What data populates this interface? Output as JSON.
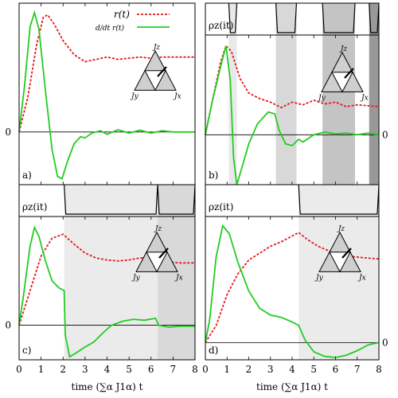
{
  "chart_data": [
    {
      "panel_label": "a)",
      "type": "line",
      "xlim": [
        0,
        8
      ],
      "ylim": [
        -0.45,
        1.1
      ],
      "zero_label": "0",
      "series": [
        {
          "name": "r(t)",
          "style": "dashed",
          "color": "#e41a1c",
          "points": [
            [
              0,
              0
            ],
            [
              0.4,
              0.3
            ],
            [
              0.8,
              0.75
            ],
            [
              1.1,
              0.98
            ],
            [
              1.3,
              1.0
            ],
            [
              1.6,
              0.92
            ],
            [
              2.0,
              0.78
            ],
            [
              2.5,
              0.66
            ],
            [
              3.0,
              0.6
            ],
            [
              3.5,
              0.62
            ],
            [
              4.0,
              0.64
            ],
            [
              4.5,
              0.62
            ],
            [
              5.0,
              0.63
            ],
            [
              5.5,
              0.64
            ],
            [
              6.0,
              0.63
            ],
            [
              6.5,
              0.64
            ],
            [
              7.0,
              0.64
            ],
            [
              7.5,
              0.64
            ],
            [
              8.0,
              0.64
            ]
          ]
        },
        {
          "name": "d/dt r(t)",
          "style": "solid",
          "color": "#22cc22",
          "points": [
            [
              0,
              0
            ],
            [
              0.25,
              0.4
            ],
            [
              0.5,
              0.9
            ],
            [
              0.7,
              1.02
            ],
            [
              0.9,
              0.88
            ],
            [
              1.2,
              0.35
            ],
            [
              1.5,
              -0.15
            ],
            [
              1.75,
              -0.38
            ],
            [
              1.95,
              -0.4
            ],
            [
              2.2,
              -0.25
            ],
            [
              2.5,
              -0.1
            ],
            [
              2.8,
              -0.04
            ],
            [
              3.0,
              -0.05
            ],
            [
              3.3,
              -0.01
            ],
            [
              3.7,
              0.01
            ],
            [
              4.0,
              -0.02
            ],
            [
              4.5,
              0.02
            ],
            [
              5.0,
              -0.01
            ],
            [
              5.5,
              0.015
            ],
            [
              6.0,
              -0.01
            ],
            [
              6.5,
              0.01
            ],
            [
              7.0,
              0.0
            ],
            [
              8.0,
              0.0
            ]
          ]
        }
      ],
      "shaded_regions": []
    },
    {
      "panel_label": "b)",
      "type": "line",
      "xlim": [
        0,
        8
      ],
      "ylim": [
        -0.55,
        1.1
      ],
      "zero_label": "0",
      "top_strip_label": "ρz(it)",
      "series": [
        {
          "name": "r(t)",
          "style": "dashed",
          "color": "#e41a1c",
          "points": [
            [
              0,
              0
            ],
            [
              0.3,
              0.35
            ],
            [
              0.7,
              0.8
            ],
            [
              0.95,
              0.98
            ],
            [
              1.2,
              0.92
            ],
            [
              1.6,
              0.62
            ],
            [
              2.0,
              0.46
            ],
            [
              2.5,
              0.4
            ],
            [
              3.0,
              0.36
            ],
            [
              3.5,
              0.3
            ],
            [
              4.0,
              0.36
            ],
            [
              4.5,
              0.33
            ],
            [
              5.0,
              0.38
            ],
            [
              5.5,
              0.34
            ],
            [
              6.0,
              0.36
            ],
            [
              6.5,
              0.31
            ],
            [
              7.0,
              0.33
            ],
            [
              7.5,
              0.32
            ],
            [
              8.0,
              0.31
            ]
          ]
        },
        {
          "name": "d/dt r(t)",
          "style": "solid",
          "color": "#22cc22",
          "points": [
            [
              0,
              0
            ],
            [
              0.3,
              0.35
            ],
            [
              0.7,
              0.75
            ],
            [
              0.95,
              0.98
            ],
            [
              1.15,
              0.6
            ],
            [
              1.3,
              -0.25
            ],
            [
              1.45,
              -0.55
            ],
            [
              1.7,
              -0.35
            ],
            [
              2.0,
              -0.1
            ],
            [
              2.4,
              0.12
            ],
            [
              2.9,
              0.25
            ],
            [
              3.2,
              0.23
            ],
            [
              3.4,
              0.05
            ],
            [
              3.7,
              -0.1
            ],
            [
              4.0,
              -0.12
            ],
            [
              4.3,
              -0.05
            ],
            [
              4.5,
              -0.08
            ],
            [
              5.0,
              0.0
            ],
            [
              5.5,
              0.03
            ],
            [
              6.0,
              0.01
            ],
            [
              6.5,
              0.02
            ],
            [
              7.0,
              0.0
            ],
            [
              7.5,
              0.02
            ],
            [
              8.0,
              0.0
            ]
          ]
        }
      ],
      "shaded_regions": [
        {
          "x0": 1.08,
          "x1": 1.45,
          "shade": "#e9e9e9"
        },
        {
          "x0": 3.25,
          "x1": 4.2,
          "shade": "#d8d8d8"
        },
        {
          "x0": 5.4,
          "x1": 6.9,
          "shade": "#c4c4c4"
        },
        {
          "x0": 7.55,
          "x1": 8.0,
          "shade": "#999999"
        }
      ]
    },
    {
      "panel_label": "c)",
      "type": "line",
      "xlim": [
        0,
        8
      ],
      "ylim": [
        -0.35,
        1.1
      ],
      "zero_label": "0",
      "top_strip_label": "ρz(it)",
      "series": [
        {
          "name": "r(t)",
          "style": "dashed",
          "color": "#e41a1c",
          "points": [
            [
              0,
              0
            ],
            [
              0.5,
              0.35
            ],
            [
              1.0,
              0.7
            ],
            [
              1.5,
              0.88
            ],
            [
              2.0,
              0.92
            ],
            [
              2.5,
              0.82
            ],
            [
              3.0,
              0.73
            ],
            [
              3.5,
              0.68
            ],
            [
              4.0,
              0.66
            ],
            [
              4.5,
              0.65
            ],
            [
              5.0,
              0.66
            ],
            [
              5.5,
              0.68
            ],
            [
              6.0,
              0.69
            ],
            [
              6.3,
              0.66
            ],
            [
              6.8,
              0.64
            ],
            [
              7.3,
              0.63
            ],
            [
              8.0,
              0.63
            ]
          ]
        },
        {
          "name": "d/dt r(t)",
          "style": "solid",
          "color": "#22cc22",
          "points": [
            [
              0,
              0
            ],
            [
              0.2,
              0.3
            ],
            [
              0.5,
              0.8
            ],
            [
              0.7,
              0.99
            ],
            [
              0.9,
              0.9
            ],
            [
              1.2,
              0.65
            ],
            [
              1.5,
              0.45
            ],
            [
              1.8,
              0.38
            ],
            [
              2.05,
              0.35
            ],
            [
              2.1,
              -0.1
            ],
            [
              2.3,
              -0.32
            ],
            [
              2.6,
              -0.28
            ],
            [
              3.0,
              -0.22
            ],
            [
              3.4,
              -0.17
            ],
            [
              3.8,
              -0.08
            ],
            [
              4.2,
              0.0
            ],
            [
              4.7,
              0.04
            ],
            [
              5.2,
              0.06
            ],
            [
              5.7,
              0.05
            ],
            [
              6.2,
              0.07
            ],
            [
              6.35,
              0.0
            ],
            [
              6.8,
              -0.02
            ],
            [
              7.3,
              -0.01
            ],
            [
              8.0,
              -0.01
            ]
          ]
        }
      ],
      "shaded_regions": [
        {
          "x0": 2.05,
          "x1": 6.3,
          "shade": "#ebebeb"
        },
        {
          "x0": 6.3,
          "x1": 8.0,
          "shade": "#d9d9d9"
        }
      ]
    },
    {
      "panel_label": "d)",
      "type": "line",
      "xlim": [
        0,
        8
      ],
      "ylim": [
        -0.15,
        1.1
      ],
      "zero_label": "0",
      "top_strip_label": "ρz(it)",
      "series": [
        {
          "name": "r(t)",
          "style": "dashed",
          "color": "#e41a1c",
          "points": [
            [
              0,
              0
            ],
            [
              0.5,
              0.15
            ],
            [
              1.0,
              0.42
            ],
            [
              1.5,
              0.6
            ],
            [
              2.0,
              0.72
            ],
            [
              2.5,
              0.78
            ],
            [
              3.0,
              0.84
            ],
            [
              3.5,
              0.88
            ],
            [
              4.0,
              0.93
            ],
            [
              4.3,
              0.96
            ],
            [
              4.7,
              0.9
            ],
            [
              5.2,
              0.84
            ],
            [
              5.7,
              0.8
            ],
            [
              6.2,
              0.78
            ],
            [
              6.8,
              0.75
            ],
            [
              7.3,
              0.74
            ],
            [
              8.0,
              0.73
            ]
          ]
        },
        {
          "name": "d/dt r(t)",
          "style": "solid",
          "color": "#22cc22",
          "points": [
            [
              0,
              0
            ],
            [
              0.2,
              0.2
            ],
            [
              0.5,
              0.75
            ],
            [
              0.8,
              1.02
            ],
            [
              1.1,
              0.95
            ],
            [
              1.5,
              0.7
            ],
            [
              2.0,
              0.45
            ],
            [
              2.5,
              0.3
            ],
            [
              3.0,
              0.24
            ],
            [
              3.5,
              0.22
            ],
            [
              4.0,
              0.18
            ],
            [
              4.3,
              0.15
            ],
            [
              4.6,
              0.02
            ],
            [
              5.0,
              -0.08
            ],
            [
              5.5,
              -0.12
            ],
            [
              6.0,
              -0.13
            ],
            [
              6.5,
              -0.11
            ],
            [
              7.0,
              -0.07
            ],
            [
              7.5,
              -0.02
            ],
            [
              8.0,
              0.0
            ]
          ]
        }
      ],
      "shaded_regions": [
        {
          "x0": 4.3,
          "x1": 8.0,
          "shade": "#ebebeb"
        }
      ]
    }
  ],
  "legend": {
    "r_label": "r(t)",
    "drdt_label": "d/dt r(t)"
  },
  "x_axis": {
    "ticks": [
      "0",
      "1",
      "2",
      "3",
      "4",
      "5",
      "6",
      "7",
      "8"
    ],
    "label": "time (∑α J1α) t"
  },
  "inset": {
    "labels": {
      "top": "Jz",
      "left": "Jy",
      "right": "Jx"
    }
  }
}
